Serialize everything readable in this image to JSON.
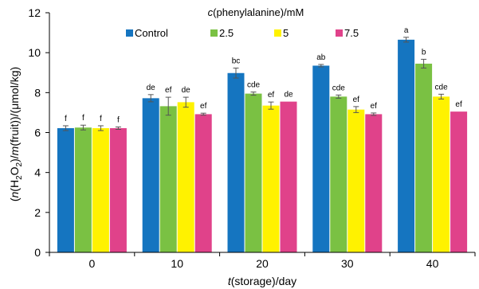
{
  "chart_data": {
    "type": "bar",
    "legend_title_italic": "c",
    "legend_title_rest": "(phenylalanine)/mM",
    "xlabel_italic": "t",
    "xlabel_rest": "(storage)/day",
    "ylabel_parts": [
      "(",
      "n",
      "(H",
      "2",
      "O",
      "2",
      ")/",
      "m",
      "(fruit))/(μmol/kg)"
    ],
    "categories": [
      "0",
      "10",
      "20",
      "30",
      "40"
    ],
    "ylim": [
      0,
      12
    ],
    "yticks": [
      "0",
      "2",
      "4",
      "6",
      "8",
      "10",
      "12"
    ],
    "legend_position": "top",
    "series": [
      {
        "name": "Control",
        "color": "#1575c0",
        "values": [
          6.22,
          7.72,
          8.98,
          9.35,
          10.65
        ],
        "errors": [
          0.12,
          0.18,
          0.25,
          0.06,
          0.12
        ],
        "letters": [
          "f",
          "de",
          "bc",
          "ab",
          "a"
        ]
      },
      {
        "name": "2.5",
        "color": "#7ac143",
        "values": [
          6.25,
          7.32,
          7.95,
          7.8,
          9.45
        ],
        "errors": [
          0.12,
          0.45,
          0.08,
          0.08,
          0.22
        ],
        "letters": [
          "f",
          "ef",
          "cde",
          "cde",
          "b"
        ]
      },
      {
        "name": "5",
        "color": "#fff200",
        "values": [
          6.22,
          7.52,
          7.35,
          7.15,
          7.8
        ],
        "errors": [
          0.12,
          0.25,
          0.18,
          0.15,
          0.12
        ],
        "letters": [
          "f",
          "de",
          "ef",
          "ef",
          "cde"
        ]
      },
      {
        "name": "7.5",
        "color": "#e0428a",
        "values": [
          6.22,
          6.92,
          7.55,
          6.92,
          7.05
        ],
        "errors": [
          0.06,
          0.05,
          0.0,
          0.06,
          0.0
        ],
        "letters": [
          "f",
          "ef",
          "de",
          "ef",
          "ef"
        ]
      }
    ]
  }
}
